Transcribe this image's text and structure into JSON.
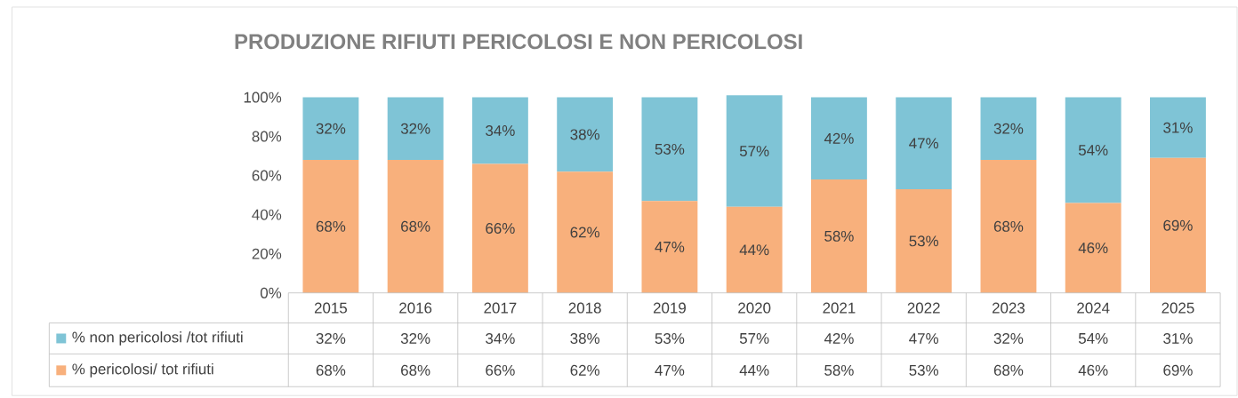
{
  "chart_data": {
    "type": "bar",
    "title": "PRODUZIONE RIFIUTI PERICOLOSI E NON PERICOLOSI",
    "stacked": true,
    "legend": "bottom",
    "categories": [
      "2015",
      "2016",
      "2017",
      "2018",
      "2019",
      "2020",
      "2021",
      "2022",
      "2023",
      "2024",
      "2025"
    ],
    "ylim": [
      0,
      101
    ],
    "yticks": [
      {
        "value": 0,
        "label": "0%"
      },
      {
        "value": 20,
        "label": "20%"
      },
      {
        "value": 40,
        "label": "40%"
      },
      {
        "value": 60,
        "label": "60%"
      },
      {
        "value": 80,
        "label": "80%"
      },
      {
        "value": 100,
        "label": "100%"
      }
    ],
    "series": [
      {
        "name": "% pericolosi/ tot rifiuti",
        "color": "#f8b07c",
        "values": [
          68,
          68,
          66,
          62,
          47,
          44,
          58,
          53,
          68,
          46,
          69
        ],
        "value_labels": [
          "68%",
          "68%",
          "66%",
          "62%",
          "47%",
          "44%",
          "58%",
          "53%",
          "68%",
          "46%",
          "69%"
        ]
      },
      {
        "name": "% non pericolosi /tot rifiuti",
        "color": "#7fc4d6",
        "values": [
          32,
          32,
          34,
          38,
          53,
          57,
          42,
          47,
          32,
          54,
          31
        ],
        "value_labels": [
          "32%",
          "32%",
          "34%",
          "38%",
          "53%",
          "57%",
          "42%",
          "47%",
          "32%",
          "54%",
          "31%"
        ]
      }
    ]
  }
}
